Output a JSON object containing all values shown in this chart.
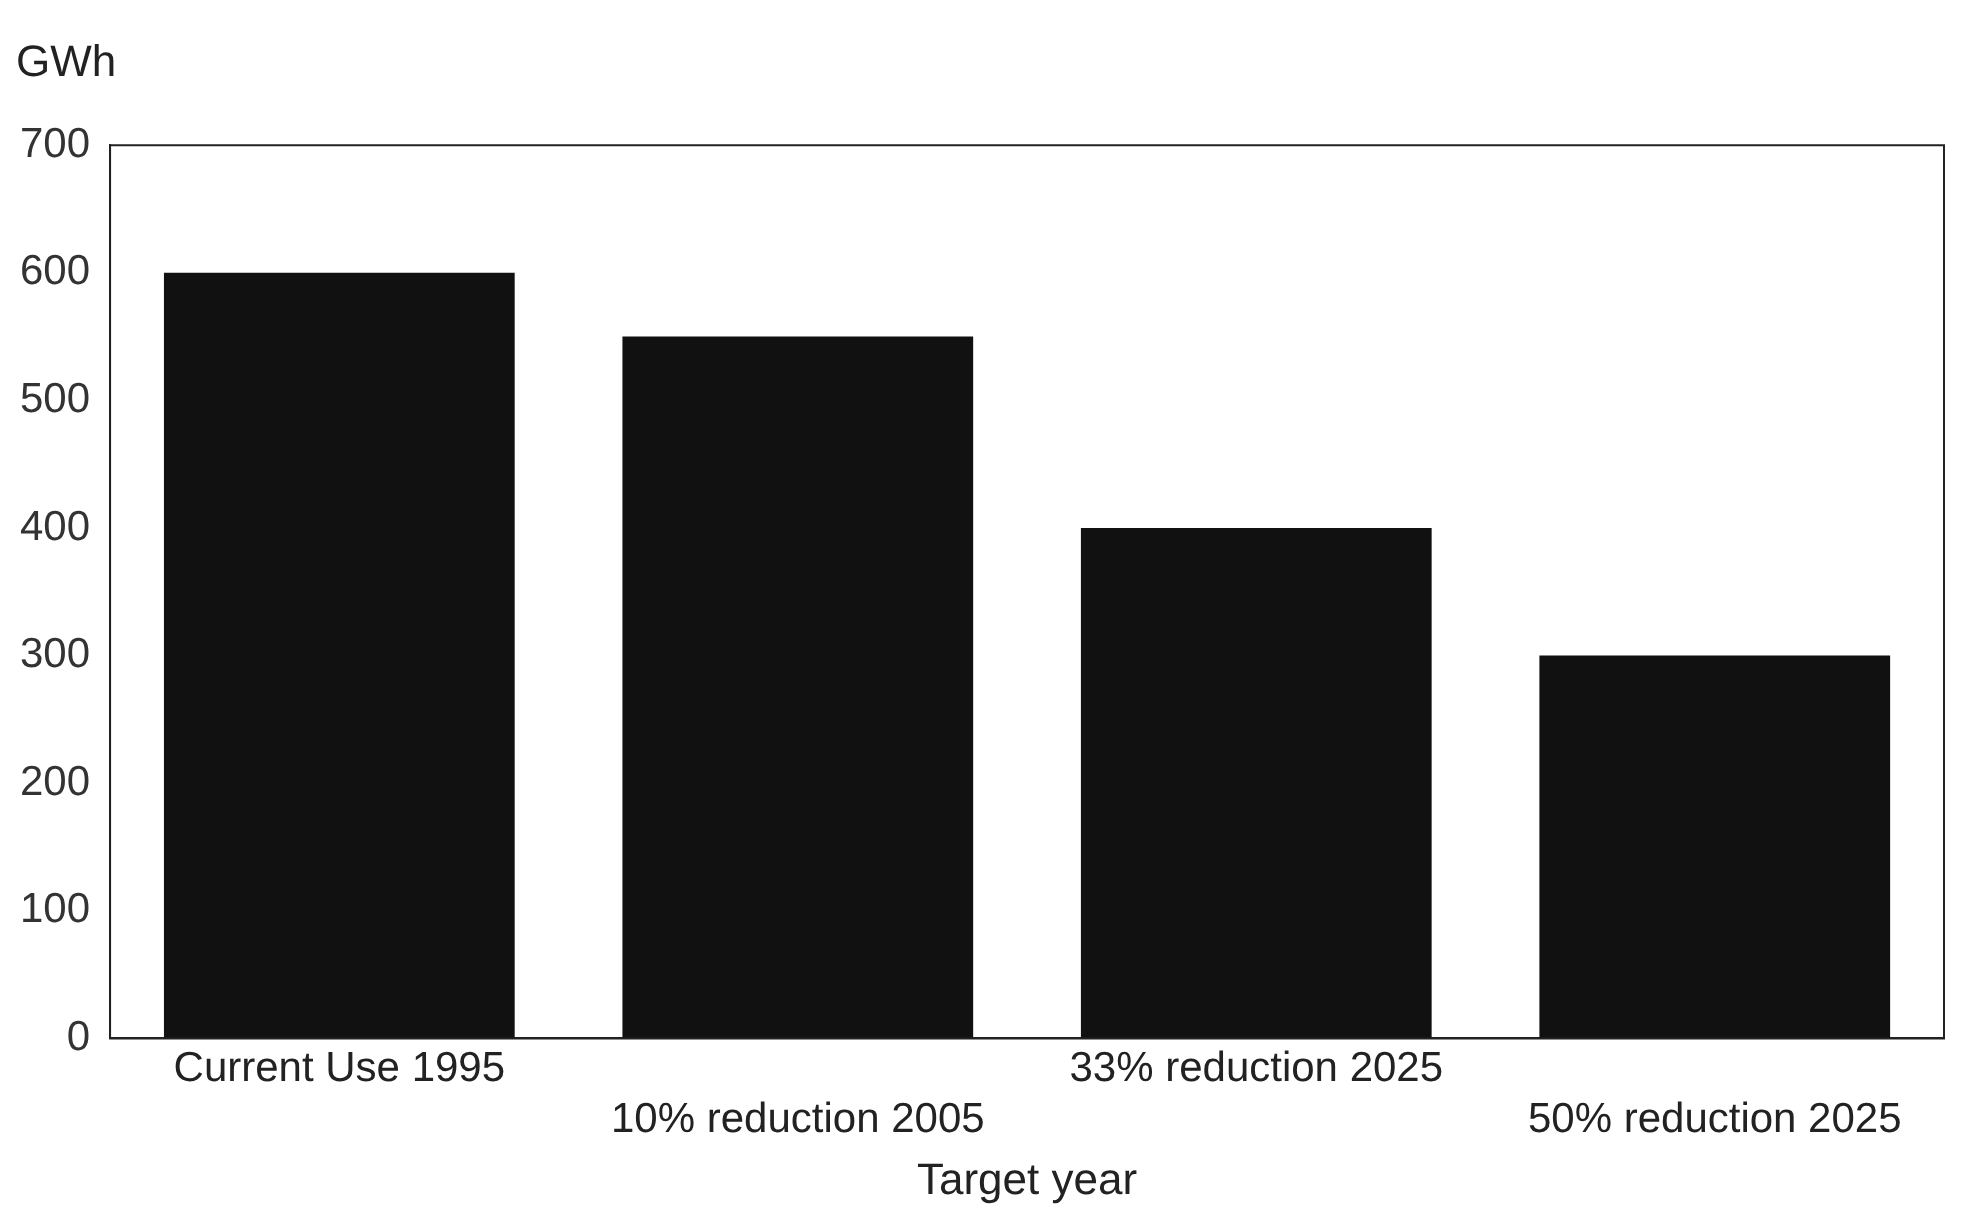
{
  "chart_data": {
    "type": "bar",
    "ylabel": "GWh",
    "xlabel": "Target year",
    "categories": [
      "Current Use 1995",
      "10% reduction 2005",
      "33% reduction 2025",
      "50% reduction 2025"
    ],
    "values": [
      600,
      550,
      400,
      300
    ],
    "color": "#111111",
    "ylim": [
      0,
      700
    ],
    "yticks": [
      0,
      100,
      200,
      300,
      400,
      500,
      600,
      700
    ],
    "grid": false,
    "legend": false
  }
}
